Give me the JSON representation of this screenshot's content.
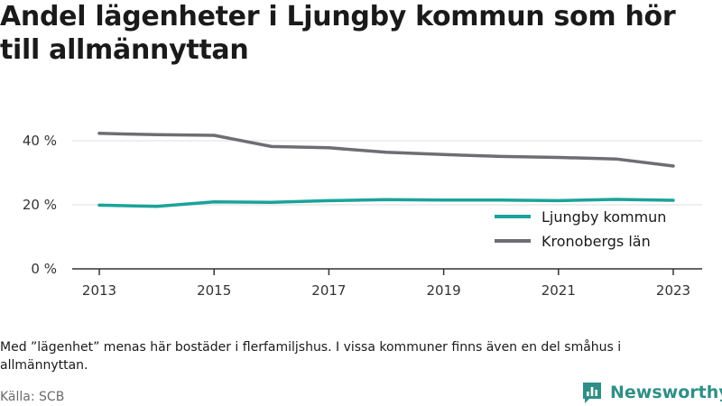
{
  "title": "Andel lägenheter i Ljungby kommun som hör till allmännyttan",
  "note": "Med ”lägenhet” menas här bostäder i flerfamiljshus. I vissa kommuner finns även en del småhus i allmännyttan.",
  "source": "Källa: SCB",
  "brand": {
    "name": "Newsworthy",
    "icon": "newsworthy-logo-icon",
    "color": "#2f8f86"
  },
  "chart_data": {
    "type": "line",
    "x": [
      2013,
      2014,
      2015,
      2016,
      2017,
      2018,
      2019,
      2020,
      2021,
      2022,
      2023
    ],
    "x_tick_labels": [
      "2013",
      "2015",
      "2017",
      "2019",
      "2021",
      "2023"
    ],
    "y_tick_labels": [
      "0 %",
      "20 %",
      "40 %"
    ],
    "ylim": [
      0,
      45
    ],
    "xlabel": "",
    "ylabel": "",
    "grid": true,
    "legend_position": "bottom-right",
    "series": [
      {
        "name": "Ljungby kommun",
        "color": "#1aa39a",
        "values": [
          19.9,
          19.5,
          20.9,
          20.8,
          21.3,
          21.6,
          21.5,
          21.5,
          21.3,
          21.7,
          21.4
        ]
      },
      {
        "name": "Kronobergs län",
        "color": "#6e6d73",
        "values": [
          42.3,
          41.9,
          41.7,
          38.2,
          37.8,
          36.4,
          35.7,
          35.1,
          34.8,
          34.3,
          32.1
        ]
      }
    ]
  }
}
